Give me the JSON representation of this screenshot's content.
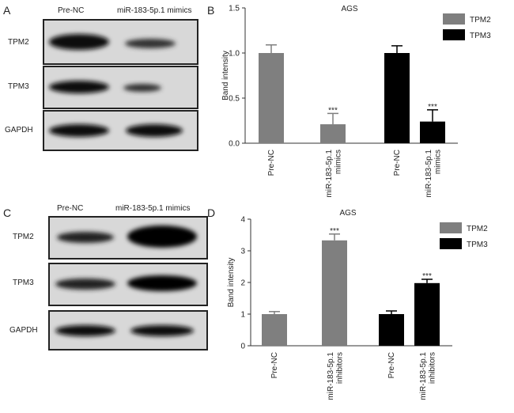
{
  "blots": [
    {
      "panel": "A",
      "columns": [
        "Pre-NC",
        "miR-183-5p.1 mimics"
      ],
      "rows": [
        "TPM2",
        "TPM3",
        "GAPDH"
      ]
    },
    {
      "panel": "C",
      "columns": [
        "Pre-NC",
        "miR-183-5p.1 mimics"
      ],
      "rows": [
        "TPM2",
        "TPM3",
        "GAPDH"
      ]
    }
  ],
  "chart_data": [
    {
      "type": "bar",
      "panel": "B",
      "title": "AGS",
      "y_label": "Band intensity",
      "categories": [
        "Pre-NC",
        "miR-183-5p.1 mimics",
        "Pre-NC",
        "miR-183-5p.1 mimics"
      ],
      "series": [
        {
          "name": "TPM2",
          "color": "#7f7f7f",
          "values": [
            1.0,
            0.21,
            null,
            null
          ],
          "errors": [
            0.09,
            0.12,
            null,
            null
          ],
          "significance": [
            null,
            "***",
            null,
            null
          ]
        },
        {
          "name": "TPM3",
          "color": "#000000",
          "values": [
            null,
            null,
            1.0,
            0.24
          ],
          "errors": [
            null,
            null,
            0.08,
            0.13
          ],
          "significance": [
            null,
            null,
            null,
            "***"
          ]
        }
      ],
      "ylim": [
        0,
        1.5
      ],
      "yticks": [
        {
          "value": 0,
          "label": "0.0"
        },
        {
          "value": 0.5,
          "label": "0.5"
        },
        {
          "value": 1,
          "label": "1.0"
        },
        {
          "value": 1.5,
          "label": "1.5"
        }
      ],
      "legend": "upper right"
    },
    {
      "type": "bar",
      "panel": "D",
      "title": "AGS",
      "y_label": "Band intensity",
      "categories": [
        "Pre-NC",
        "miR-183-5p.1 inhibitors",
        "Pre-NC",
        "miR-183-5p.1 inhibitors"
      ],
      "series": [
        {
          "name": "TPM2",
          "color": "#7f7f7f",
          "values": [
            1.0,
            3.33,
            null,
            null
          ],
          "errors": [
            0.08,
            0.2,
            null,
            null
          ],
          "significance": [
            null,
            "***",
            null,
            null
          ]
        },
        {
          "name": "TPM3",
          "color": "#000000",
          "values": [
            null,
            null,
            1.0,
            1.98
          ],
          "errors": [
            null,
            null,
            0.1,
            0.12
          ],
          "significance": [
            null,
            null,
            null,
            "***"
          ]
        }
      ],
      "ylim": [
        0,
        4
      ],
      "yticks": [
        0,
        1,
        2,
        3,
        4
      ],
      "legend": "upper right"
    }
  ]
}
